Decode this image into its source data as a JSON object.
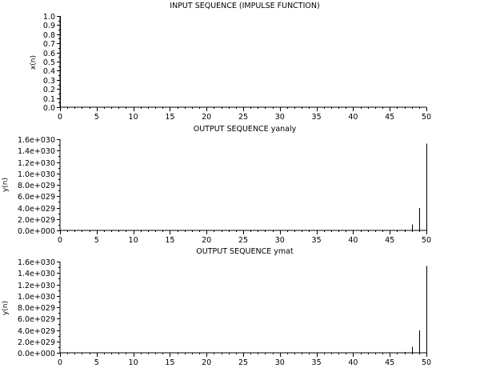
{
  "chart_data": [
    {
      "type": "bar",
      "title": "INPUT SEQUENCE (IMPULSE FUNCTION)",
      "xlabel": "",
      "ylabel": "x(n)",
      "xlim": [
        0,
        50
      ],
      "ylim": [
        0,
        1.0
      ],
      "x_ticks": [
        "0",
        "5",
        "10",
        "15",
        "20",
        "25",
        "30",
        "35",
        "40",
        "45",
        "50"
      ],
      "y_ticks": [
        "0.0",
        "0.1",
        "0.2",
        "0.3",
        "0.4",
        "0.5",
        "0.6",
        "0.7",
        "0.8",
        "0.9",
        "1.0"
      ],
      "x": [
        0
      ],
      "values": [
        1.0
      ],
      "grid": false
    },
    {
      "type": "bar",
      "title": "OUTPUT SEQUENCE yanaly",
      "xlabel": "",
      "ylabel": "y(n)",
      "xlim": [
        0,
        50
      ],
      "ylim": [
        0,
        1.6e+30
      ],
      "x_ticks": [
        "0",
        "5",
        "10",
        "15",
        "20",
        "25",
        "30",
        "35",
        "40",
        "45",
        "50"
      ],
      "y_ticks": [
        "0.0e+000",
        "2.0e+029",
        "4.0e+029",
        "6.0e+029",
        "8.0e+029",
        "1.0e+030",
        "1.2e+030",
        "1.4e+030",
        "1.6e+030"
      ],
      "x": [
        46,
        47,
        48,
        49,
        50
      ],
      "values": [
        1.1e+27,
        1.5e+28,
        1.05e+29,
        3.95e+29,
        1.52e+30
      ],
      "grid": false
    },
    {
      "type": "bar",
      "title": "OUTPUT SEQUENCE ymat",
      "xlabel": "",
      "ylabel": "y(n)",
      "xlim": [
        0,
        50
      ],
      "ylim": [
        0,
        1.6e+30
      ],
      "x_ticks": [
        "0",
        "5",
        "10",
        "15",
        "20",
        "25",
        "30",
        "35",
        "40",
        "45",
        "50"
      ],
      "y_ticks": [
        "0.0e+000",
        "2.0e+029",
        "4.0e+029",
        "6.0e+029",
        "8.0e+029",
        "1.0e+030",
        "1.2e+030",
        "1.4e+030",
        "1.6e+030"
      ],
      "x": [
        46,
        47,
        48,
        49,
        50
      ],
      "values": [
        1.1e+27,
        1.5e+28,
        1.05e+29,
        3.95e+29,
        1.52e+30
      ],
      "grid": false
    }
  ]
}
